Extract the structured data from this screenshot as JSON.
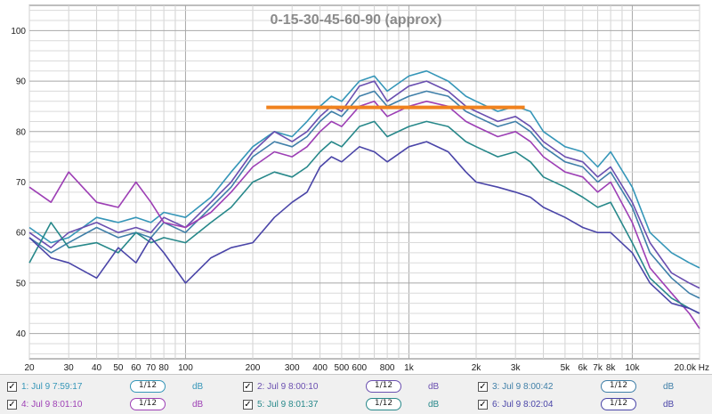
{
  "chart_data": {
    "type": "line",
    "title": "0-15-30-45-60-90 (approx)",
    "xlabel": "",
    "ylabel": "",
    "x_scale": "log",
    "xlim": [
      20,
      20000
    ],
    "ylim": [
      35,
      105
    ],
    "grid": true,
    "y_ticks": [
      40,
      50,
      60,
      70,
      80,
      90,
      100
    ],
    "x_ticks": [
      20,
      30,
      40,
      50,
      60,
      70,
      80,
      100,
      200,
      300,
      400,
      500,
      600,
      800,
      1000,
      2000,
      3000,
      5000,
      6000,
      7000,
      8000,
      10000,
      20000
    ],
    "x_tick_labels": [
      "20",
      "30",
      "40",
      "50",
      "60",
      "70",
      "80",
      "100",
      "200",
      "300",
      "400",
      "500",
      "600",
      "800",
      "1k",
      "2k",
      "3k",
      "5k",
      "6k",
      "7k",
      "8k",
      "10k",
      "20.0k Hz"
    ],
    "annotation": {
      "type": "horizontal-line",
      "y": 84.8,
      "x_from": 230,
      "x_to": 3300,
      "color": "#f0821e"
    },
    "series": [
      {
        "color": "#3596b8",
        "x": [
          20,
          25,
          30,
          40,
          50,
          60,
          70,
          80,
          100,
          130,
          160,
          200,
          250,
          300,
          350,
          400,
          450,
          500,
          600,
          700,
          800,
          1000,
          1200,
          1500,
          1800,
          2000,
          2500,
          3000,
          3500,
          4000,
          5000,
          6000,
          7000,
          8000,
          10000,
          12000,
          15000,
          18000,
          20000
        ],
        "y": [
          61,
          58,
          59,
          63,
          62,
          63,
          62,
          64,
          63,
          67,
          72,
          77,
          80,
          79,
          82,
          85,
          87,
          86,
          90,
          91,
          88,
          91,
          92,
          90,
          87,
          86,
          84,
          85,
          84,
          80,
          77,
          76,
          73,
          76,
          69,
          60,
          56,
          54,
          53
        ]
      },
      {
        "color": "#6a4fb0",
        "x": [
          20,
          25,
          30,
          40,
          50,
          60,
          70,
          80,
          100,
          130,
          160,
          200,
          250,
          300,
          350,
          400,
          450,
          500,
          600,
          700,
          800,
          1000,
          1200,
          1500,
          1800,
          2000,
          2500,
          3000,
          3500,
          4000,
          5000,
          6000,
          7000,
          8000,
          10000,
          12000,
          15000,
          18000,
          20000
        ],
        "y": [
          60,
          57,
          60,
          62,
          60,
          61,
          60,
          63,
          61,
          66,
          70,
          76,
          80,
          78,
          80,
          83,
          85,
          84,
          89,
          90,
          86,
          89,
          90,
          88,
          85,
          84,
          82,
          83,
          81,
          78,
          75,
          74,
          71,
          73,
          66,
          58,
          52,
          50,
          49
        ]
      },
      {
        "color": "#3f7fa8",
        "x": [
          20,
          25,
          30,
          40,
          50,
          60,
          70,
          80,
          100,
          130,
          160,
          200,
          250,
          300,
          350,
          400,
          450,
          500,
          600,
          700,
          800,
          1000,
          1200,
          1500,
          1800,
          2000,
          2500,
          3000,
          3500,
          4000,
          5000,
          6000,
          7000,
          8000,
          10000,
          12000,
          15000,
          18000,
          20000
        ],
        "y": [
          59,
          56,
          58,
          61,
          59,
          60,
          59,
          62,
          60,
          65,
          69,
          75,
          78,
          77,
          79,
          82,
          84,
          83,
          87,
          88,
          85,
          87,
          88,
          87,
          84,
          83,
          81,
          82,
          80,
          77,
          74,
          73,
          70,
          72,
          65,
          56,
          51,
          48,
          47
        ]
      },
      {
        "color": "#9d3fb5",
        "x": [
          20,
          25,
          30,
          40,
          50,
          60,
          70,
          80,
          100,
          130,
          160,
          200,
          250,
          300,
          350,
          400,
          450,
          500,
          600,
          700,
          800,
          1000,
          1200,
          1500,
          1800,
          2000,
          2500,
          3000,
          3500,
          4000,
          5000,
          6000,
          7000,
          8000,
          10000,
          12000,
          15000,
          18000,
          20000
        ],
        "y": [
          69,
          66,
          72,
          66,
          65,
          70,
          66,
          62,
          61,
          64,
          68,
          73,
          76,
          75,
          77,
          80,
          82,
          81,
          85,
          86,
          83,
          85,
          86,
          85,
          82,
          81,
          79,
          80,
          78,
          75,
          72,
          71,
          68,
          70,
          62,
          53,
          48,
          44,
          41
        ]
      },
      {
        "color": "#27888a",
        "x": [
          20,
          25,
          30,
          40,
          50,
          60,
          70,
          80,
          100,
          130,
          160,
          200,
          250,
          300,
          350,
          400,
          450,
          500,
          600,
          700,
          800,
          1000,
          1200,
          1500,
          1800,
          2000,
          2500,
          3000,
          3500,
          4000,
          5000,
          6000,
          7000,
          8000,
          10000,
          12000,
          15000,
          18000,
          20000
        ],
        "y": [
          54,
          62,
          57,
          58,
          56,
          60,
          58,
          59,
          58,
          62,
          65,
          70,
          72,
          71,
          73,
          76,
          78,
          77,
          81,
          82,
          79,
          81,
          82,
          81,
          78,
          77,
          75,
          76,
          74,
          71,
          69,
          67,
          65,
          66,
          58,
          51,
          47,
          45,
          44
        ]
      },
      {
        "color": "#4a45a8",
        "x": [
          20,
          25,
          30,
          40,
          50,
          60,
          70,
          80,
          100,
          130,
          160,
          200,
          250,
          300,
          350,
          400,
          450,
          500,
          600,
          700,
          800,
          1000,
          1200,
          1500,
          1800,
          2000,
          2500,
          3000,
          3500,
          4000,
          5000,
          6000,
          7000,
          8000,
          10000,
          12000,
          15000,
          18000,
          20000
        ],
        "y": [
          59,
          55,
          54,
          51,
          57,
          54,
          59,
          56,
          50,
          55,
          57,
          58,
          63,
          66,
          68,
          73,
          75,
          74,
          77,
          76,
          74,
          77,
          78,
          76,
          72,
          70,
          69,
          68,
          67,
          65,
          63,
          61,
          60,
          60,
          56,
          50,
          46,
          45,
          44
        ]
      }
    ]
  },
  "legend": {
    "items": [
      {
        "label": "1: Jul 9 7:59:17",
        "smoothing": "1/12",
        "unit": "dB",
        "color": "#3596b8"
      },
      {
        "label": "2: Jul 9 8:00:10",
        "smoothing": "1/12",
        "unit": "dB",
        "color": "#6a4fb0"
      },
      {
        "label": "3: Jul 9 8:00:42",
        "smoothing": "1/12",
        "unit": "dB",
        "color": "#3f7fa8"
      },
      {
        "label": "4: Jul 9 8:01:10",
        "smoothing": "1/12",
        "unit": "dB",
        "color": "#9d3fb5"
      },
      {
        "label": "5: Jul 9 8:01:37",
        "smoothing": "1/12",
        "unit": "dB",
        "color": "#27888a"
      },
      {
        "label": "6: Jul 9 8:02:04",
        "smoothing": "1/12",
        "unit": "dB",
        "color": "#4a45a8"
      }
    ]
  }
}
